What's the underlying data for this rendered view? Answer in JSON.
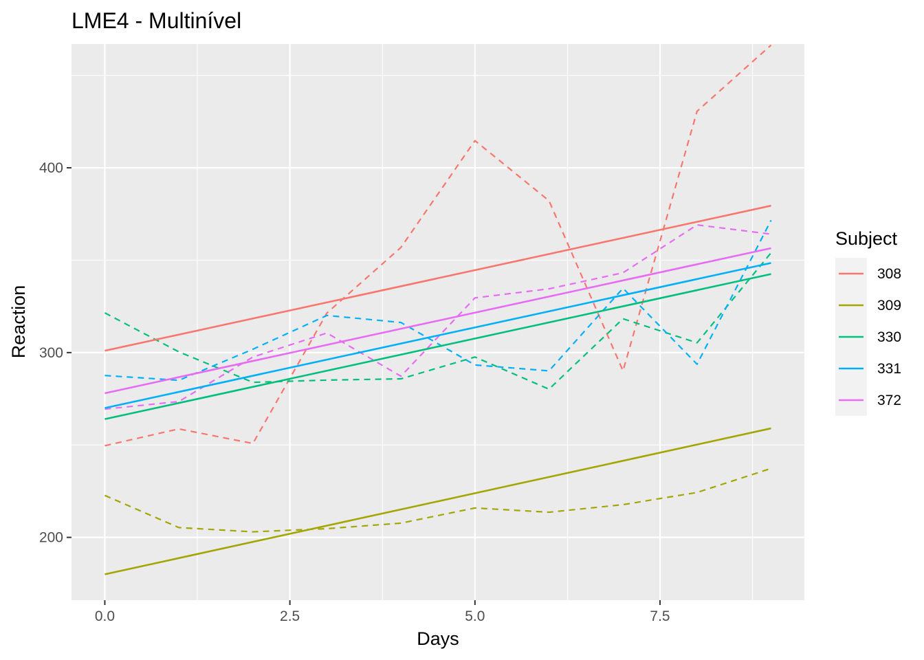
{
  "chart_data": {
    "type": "line",
    "title": "LME4 - Multinível",
    "xlabel": "Days",
    "ylabel": "Reaction",
    "xlim": [
      -0.45,
      9.45
    ],
    "ylim": [
      166,
      467
    ],
    "x_ticks": [
      0,
      2.5,
      5,
      7.5
    ],
    "x_tick_labels": [
      "0.0",
      "2.5",
      "5.0",
      "7.5"
    ],
    "y_ticks": [
      200,
      300,
      400
    ],
    "y_tick_labels": [
      "200",
      "300",
      "400"
    ],
    "grid": true,
    "legend": {
      "title": "Subject",
      "position": "right"
    },
    "x": [
      0,
      1,
      2,
      3,
      4,
      5,
      6,
      7,
      8,
      9
    ],
    "series": [
      {
        "name": "308",
        "color": "#F8766D",
        "observed": [
          249.6,
          258.7,
          250.8,
          321.4,
          356.9,
          414.7,
          382.2,
          290.1,
          430.6,
          466.4
        ],
        "fitted": [
          301,
          379.5
        ]
      },
      {
        "name": "309",
        "color": "#A3A500",
        "observed": [
          222.7,
          205.3,
          203.0,
          204.7,
          207.7,
          215.9,
          213.6,
          217.7,
          224.3,
          237.3
        ],
        "fitted": [
          180,
          259
        ]
      },
      {
        "name": "330",
        "color": "#00BF7D",
        "observed": [
          321.5,
          300.4,
          283.9,
          285.1,
          285.8,
          297.6,
          280.2,
          318.3,
          305.3,
          354.0
        ],
        "fitted": [
          264,
          342.5
        ]
      },
      {
        "name": "331",
        "color": "#00B0F6",
        "observed": [
          287.6,
          285.0,
          301.8,
          320.1,
          316.3,
          293.3,
          290.1,
          334.8,
          293.7,
          371.6
        ],
        "fitted": [
          270,
          348.5
        ]
      },
      {
        "name": "372",
        "color": "#E76BF3",
        "observed": [
          269.4,
          273.5,
          297.6,
          310.6,
          287.2,
          329.6,
          334.5,
          343.2,
          369.1,
          364.1
        ],
        "fitted": [
          278,
          356.5
        ]
      }
    ]
  }
}
